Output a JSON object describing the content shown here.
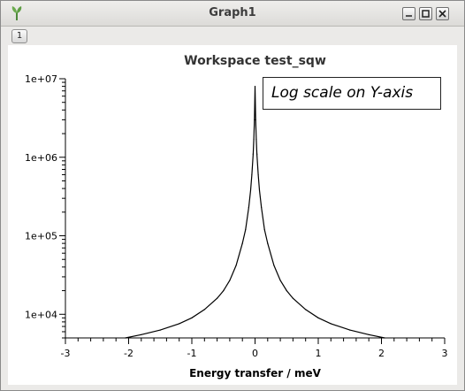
{
  "window": {
    "title": "Graph1",
    "layer_tab": "1"
  },
  "annotation": "Log scale on Y-axis",
  "colors": {
    "line": "#000000",
    "background": "#ffffff",
    "titlebar": "#e4e3e0"
  },
  "icons": [
    "mantid-app-icon",
    "minimize-icon",
    "maximize-icon",
    "close-icon"
  ],
  "chart_data": {
    "type": "line",
    "title": "Workspace test_sqw",
    "xlabel": "Energy transfer / meV",
    "ylabel": "",
    "yscale": "log",
    "xlim": [
      -3,
      3
    ],
    "ylim": [
      5000,
      10000000
    ],
    "xticks": [
      -3,
      -2,
      -1,
      0,
      1,
      2,
      3
    ],
    "xtick_labels": [
      "-3",
      "-2",
      "-1",
      "0",
      "1",
      "2",
      "3"
    ],
    "yticks": [
      10000,
      100000,
      1000000,
      10000000
    ],
    "ytick_labels": [
      "1e+04",
      "1e+05",
      "1e+06",
      "1e+07"
    ],
    "grid": false,
    "legend": "none",
    "series": [
      {
        "x": [
          -2.05,
          -1.8,
          -1.5,
          -1.2,
          -1.0,
          -0.8,
          -0.6,
          -0.5,
          -0.4,
          -0.3,
          -0.2,
          -0.15,
          -0.1,
          -0.07,
          -0.05,
          -0.03,
          -0.02,
          -0.01,
          0.0,
          0.01,
          0.02,
          0.03,
          0.05,
          0.07,
          0.1,
          0.15,
          0.2,
          0.3,
          0.4,
          0.5,
          0.6,
          0.8,
          1.0,
          1.2,
          1.5,
          1.8,
          2.05
        ],
        "y": [
          5000,
          5500,
          6300,
          7600,
          9000,
          11500,
          16000,
          20000,
          27000,
          42000,
          80000,
          120000,
          230000,
          380000,
          600000,
          1100000,
          1700000,
          3000000,
          8000000,
          3000000,
          1700000,
          1100000,
          600000,
          380000,
          230000,
          120000,
          80000,
          42000,
          27000,
          20000,
          16000,
          11500,
          9000,
          7600,
          6300,
          5500,
          5000
        ]
      }
    ]
  }
}
